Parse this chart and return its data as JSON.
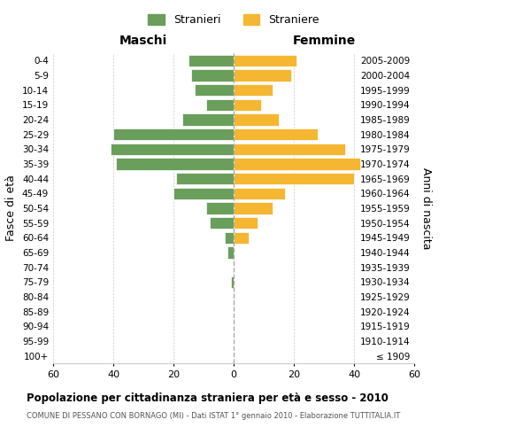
{
  "age_groups": [
    "100+",
    "95-99",
    "90-94",
    "85-89",
    "80-84",
    "75-79",
    "70-74",
    "65-69",
    "60-64",
    "55-59",
    "50-54",
    "45-49",
    "40-44",
    "35-39",
    "30-34",
    "25-29",
    "20-24",
    "15-19",
    "10-14",
    "5-9",
    "0-4"
  ],
  "birth_years": [
    "≤ 1909",
    "1910-1914",
    "1915-1919",
    "1920-1924",
    "1925-1929",
    "1930-1934",
    "1935-1939",
    "1940-1944",
    "1945-1949",
    "1950-1954",
    "1955-1959",
    "1960-1964",
    "1965-1969",
    "1970-1974",
    "1975-1979",
    "1980-1984",
    "1985-1989",
    "1990-1994",
    "1995-1999",
    "2000-2004",
    "2005-2009"
  ],
  "males": [
    0,
    0,
    0,
    0,
    0,
    1,
    0,
    2,
    3,
    8,
    9,
    20,
    19,
    39,
    41,
    40,
    17,
    9,
    13,
    14,
    15
  ],
  "females": [
    0,
    0,
    0,
    0,
    0,
    0,
    0,
    0,
    5,
    8,
    13,
    17,
    40,
    42,
    37,
    28,
    15,
    9,
    13,
    19,
    21
  ],
  "male_color": "#6a9e5b",
  "female_color": "#f5b731",
  "bar_edge_color": "white",
  "background_color": "#ffffff",
  "grid_color": "#cccccc",
  "title": "Popolazione per cittadinanza straniera per età e sesso - 2010",
  "subtitle": "COMUNE DI PESSANO CON BORNAGO (MI) - Dati ISTAT 1° gennaio 2010 - Elaborazione TUTTITALIA.IT",
  "left_axis_label": "Fasce di età",
  "right_axis_label": "Anni di nascita",
  "left_header": "Maschi",
  "right_header": "Femmine",
  "legend_male": "Stranieri",
  "legend_female": "Straniere",
  "xlim": 60,
  "figsize": [
    6.0,
    5.0
  ],
  "dpi": 100
}
